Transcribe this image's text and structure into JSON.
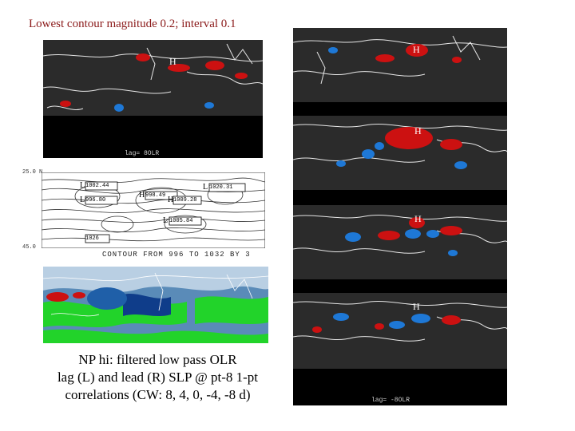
{
  "title": "Lowest contour magnitude 0.2; interval 0.1",
  "caption": {
    "line1": "NP hi: filtered low pass OLR",
    "line2": "lag (L) and lead (R) SLP @ pt-8 1-pt",
    "line3": "correlations (CW: 8, 4,  0,  -4, -8 d)"
  },
  "left_top_panel": {
    "lag_label": "lag=  8OLR",
    "marker": "H"
  },
  "contour_panel": {
    "lat_top": "25.0 N",
    "lat_bottom": "45.0",
    "caption": "CONTOUR FROM 996 TO 1032 BY 3",
    "boxes": [
      "1002.44",
      "996.80",
      "998.49",
      "1020.31",
      "1009.28",
      "1005.84",
      "1026"
    ],
    "letters": [
      "L",
      "L",
      "H",
      "L",
      "L",
      "H"
    ]
  },
  "right_panels": {
    "bottom_lag_label": "lag=  -8OLR",
    "markers": [
      "H",
      "H",
      "H",
      "H"
    ]
  },
  "colors": {
    "title": "#8b1a1a",
    "pos": "#cc1111",
    "neg": "#1e78d6",
    "map_bg": "#2b2b2b",
    "mask": "#000000"
  }
}
